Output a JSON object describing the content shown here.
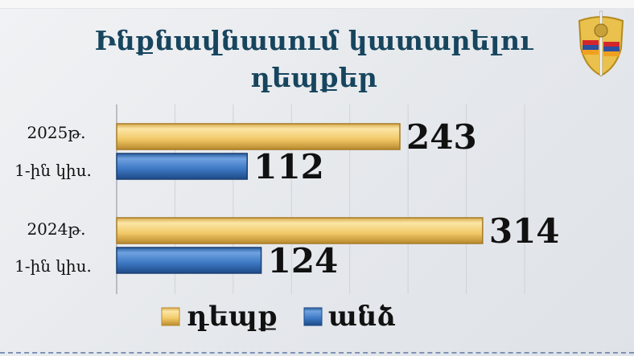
{
  "title": "Ինքնավնասում կատարելու դեպքեր",
  "colors": {
    "title": "#17455e",
    "series_cases": "#f2c867",
    "series_persons": "#3d78c4"
  },
  "emblem": {
    "icon": "police-shield-emblem-icon"
  },
  "chart_data": {
    "type": "bar",
    "orientation": "horizontal",
    "title": "Ինքնավնասում կատարելու դեպքեր",
    "categories": [
      "2025թ. 1-ին կիս.",
      "2024թ. 1-ին կիս."
    ],
    "category_lines": [
      [
        "2025թ.",
        "1-ին կիս."
      ],
      [
        "2024թ.",
        "1-ին կիս."
      ]
    ],
    "series": [
      {
        "name": "դեպք",
        "values": [
          243,
          314
        ],
        "color": "#f2c867"
      },
      {
        "name": "անձ",
        "values": [
          112,
          124
        ],
        "color": "#3d78c4"
      }
    ],
    "data_labels": true,
    "xlim": [
      0,
      350
    ],
    "grid": true,
    "grid_step": 50,
    "legend": "bottom"
  }
}
